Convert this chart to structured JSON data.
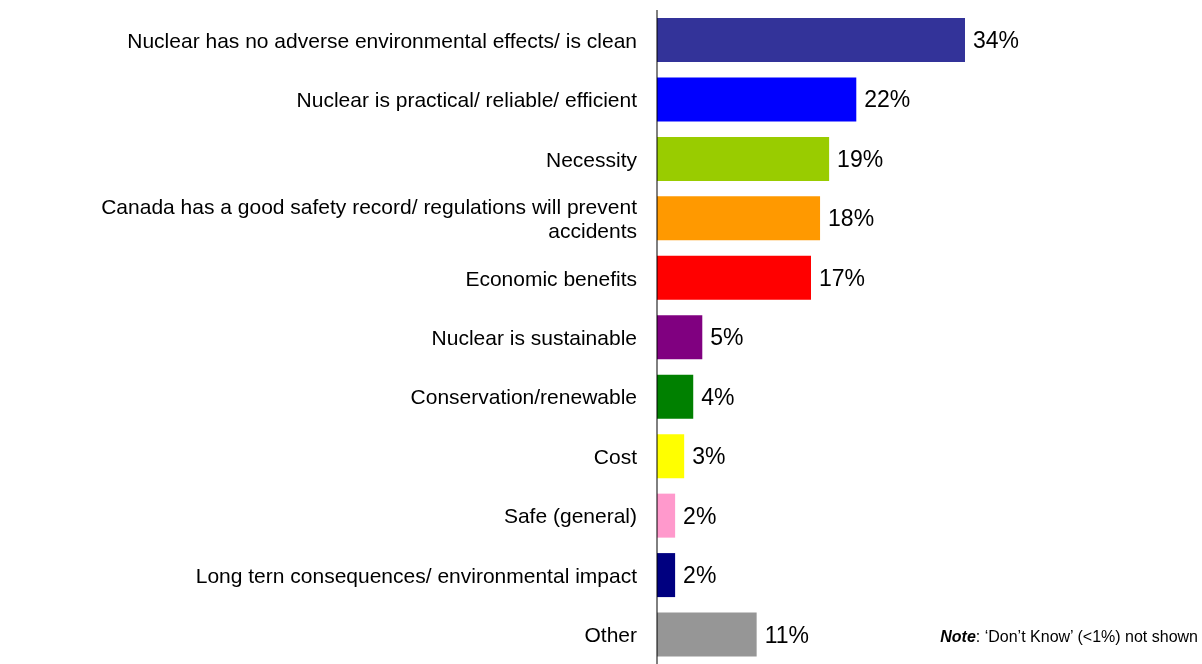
{
  "chart_data": {
    "type": "bar",
    "orientation": "horizontal",
    "categories": [
      "Nuclear has no adverse environmental effects/ is clean",
      "Nuclear is practical/ reliable/ efficient",
      "Necessity",
      "Canada has a good safety record/ regulations will prevent accidents",
      "Economic benefits",
      "Nuclear is sustainable",
      "Conservation/renewable",
      "Cost",
      "Safe (general)",
      "Long tern consequences/ environmental impact",
      "Other"
    ],
    "values": [
      34,
      22,
      19,
      18,
      17,
      5,
      4,
      3,
      2,
      2,
      11
    ],
    "value_labels": [
      "34%",
      "22%",
      "19%",
      "18%",
      "17%",
      "5%",
      "4%",
      "3%",
      "2%",
      "2%",
      "11%"
    ],
    "colors": [
      "#333399",
      "#0000ff",
      "#99cc00",
      "#ff9900",
      "#ff0000",
      "#800080",
      "#008000",
      "#ffff00",
      "#ff99cc",
      "#000080",
      "#969696"
    ],
    "annotations": [
      "Note: ‘Don’t Know’ (<1%) not shown"
    ]
  }
}
